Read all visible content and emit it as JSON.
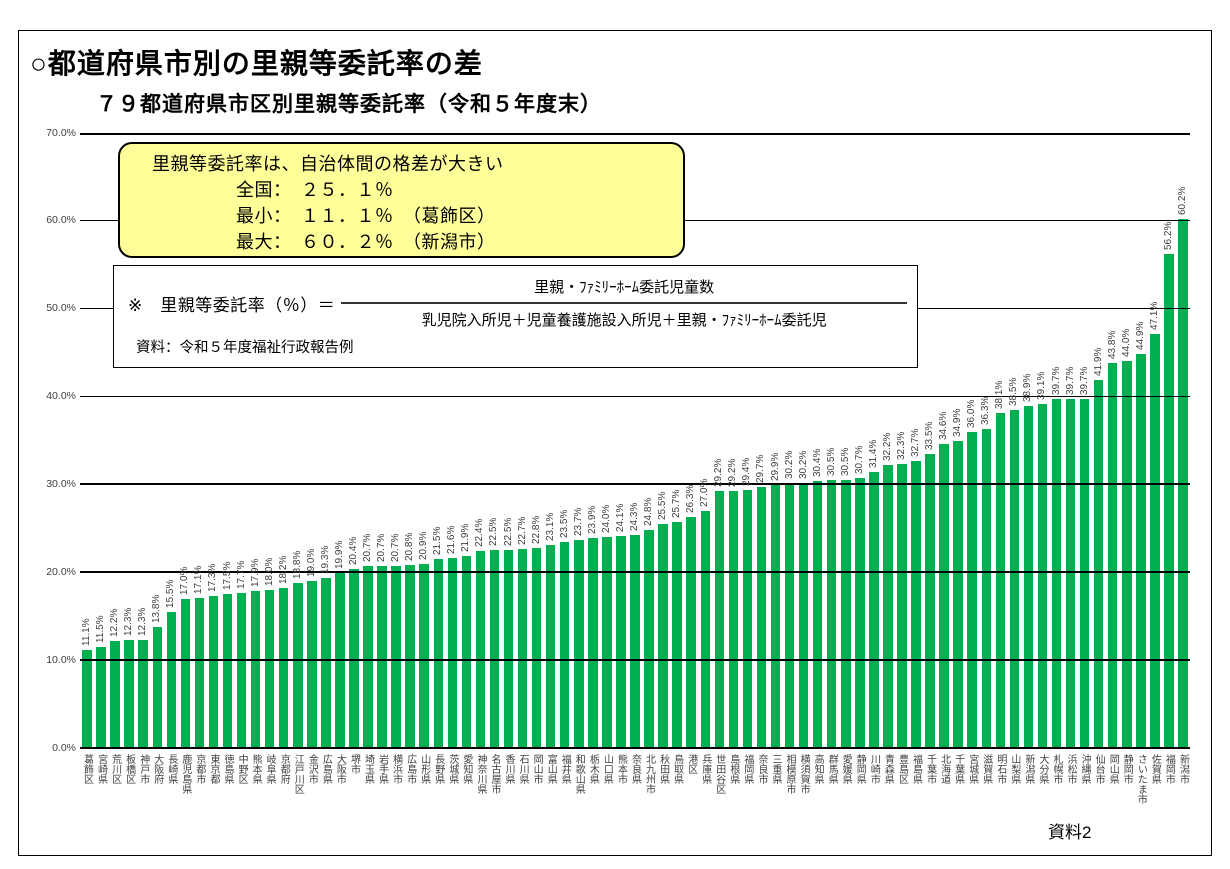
{
  "page": {
    "title": "○都道府県市別の里親等委託率の差",
    "subtitle": "７９都道府県市区別里親等委託率（令和５年度末）",
    "footer_note": "資料2"
  },
  "callout": {
    "heading": "里親等委託率は、自治体間の格差が大きい",
    "lines": [
      "全国：　２５．１％",
      "最小：　１１．１％　（葛飾区）",
      "最大：　６０．２％　（新潟市）"
    ]
  },
  "formula": {
    "lhs": "※　里親等委託率（％）＝",
    "numerator": "里親・ﾌｧﾐﾘｰﾎｰﾑ委託児童数",
    "denominator": "乳児院入所児＋児童養護施設入所児＋里親・ﾌｧﾐﾘｰﾎｰﾑ委託児",
    "source": "資料：令和５年度福祉行政報告例"
  },
  "colors": {
    "bar": "#00B050",
    "callout_bg": "#FFFF99",
    "label_gray": "#3f3f3f"
  },
  "chart_data": {
    "type": "bar",
    "title": "７９都道府県市区別里親等委託率（令和５年度末）",
    "xlabel": "",
    "ylabel": "",
    "ylim": [
      0,
      70
    ],
    "ytick_step": 10,
    "ytick_labels": [
      "0.0%",
      "10.0%",
      "20.0%",
      "30.0%",
      "40.0%",
      "50.0%",
      "60.0%",
      "70.0%"
    ],
    "grid": true,
    "value_label_suffix": "%",
    "categories": [
      "葛飾区",
      "宮崎県",
      "荒川区",
      "板橋区",
      "神戸市",
      "大阪府",
      "長崎県",
      "鹿児島県",
      "京都市",
      "東京都",
      "徳島県",
      "中野区",
      "熊本県",
      "岐阜県",
      "京都府",
      "江戸川区",
      "金沢市",
      "広島県",
      "大阪市",
      "堺市",
      "埼玉県",
      "岩手県",
      "横浜市",
      "広島市",
      "山形県",
      "長野県",
      "茨城県",
      "愛知県",
      "神奈川県",
      "名古屋市",
      "香川県",
      "石川県",
      "岡山市",
      "富山県",
      "福井県",
      "和歌山県",
      "栃木県",
      "山口県",
      "熊本市",
      "奈良県",
      "北九州市",
      "秋田県",
      "鳥取県",
      "港区",
      "兵庫県",
      "世田谷区",
      "島根県",
      "福岡県",
      "奈良市",
      "三重県",
      "相模原市",
      "横須賀市",
      "高知県",
      "群馬県",
      "愛媛県",
      "静岡県",
      "川崎市",
      "青森県",
      "豊島区",
      "福島県",
      "千葉市",
      "北海道",
      "千葉県",
      "宮城県",
      "滋賀県",
      "明石市",
      "山梨県",
      "新潟県",
      "大分県",
      "札幌市",
      "浜松市",
      "沖縄県",
      "仙台市",
      "岡山県",
      "静岡市",
      "さいたま市",
      "佐賀県",
      "福岡市",
      "新潟市"
    ],
    "values": [
      11.1,
      11.5,
      12.2,
      12.3,
      12.3,
      13.8,
      15.5,
      17.0,
      17.1,
      17.3,
      17.5,
      17.7,
      17.9,
      18.0,
      18.2,
      18.8,
      19.0,
      19.3,
      19.9,
      20.4,
      20.7,
      20.7,
      20.7,
      20.8,
      20.9,
      21.5,
      21.6,
      21.9,
      22.4,
      22.5,
      22.5,
      22.7,
      22.8,
      23.1,
      23.5,
      23.7,
      23.9,
      24.0,
      24.1,
      24.3,
      24.8,
      25.5,
      25.7,
      26.3,
      27.0,
      29.2,
      29.2,
      29.4,
      29.7,
      29.9,
      30.2,
      30.2,
      30.4,
      30.5,
      30.5,
      30.7,
      31.4,
      32.2,
      32.3,
      32.7,
      33.5,
      34.6,
      34.9,
      36.0,
      36.3,
      38.1,
      38.5,
      38.9,
      39.1,
      39.7,
      39.7,
      39.7,
      41.9,
      43.8,
      44.0,
      44.9,
      47.1,
      56.2,
      60.2
    ]
  }
}
